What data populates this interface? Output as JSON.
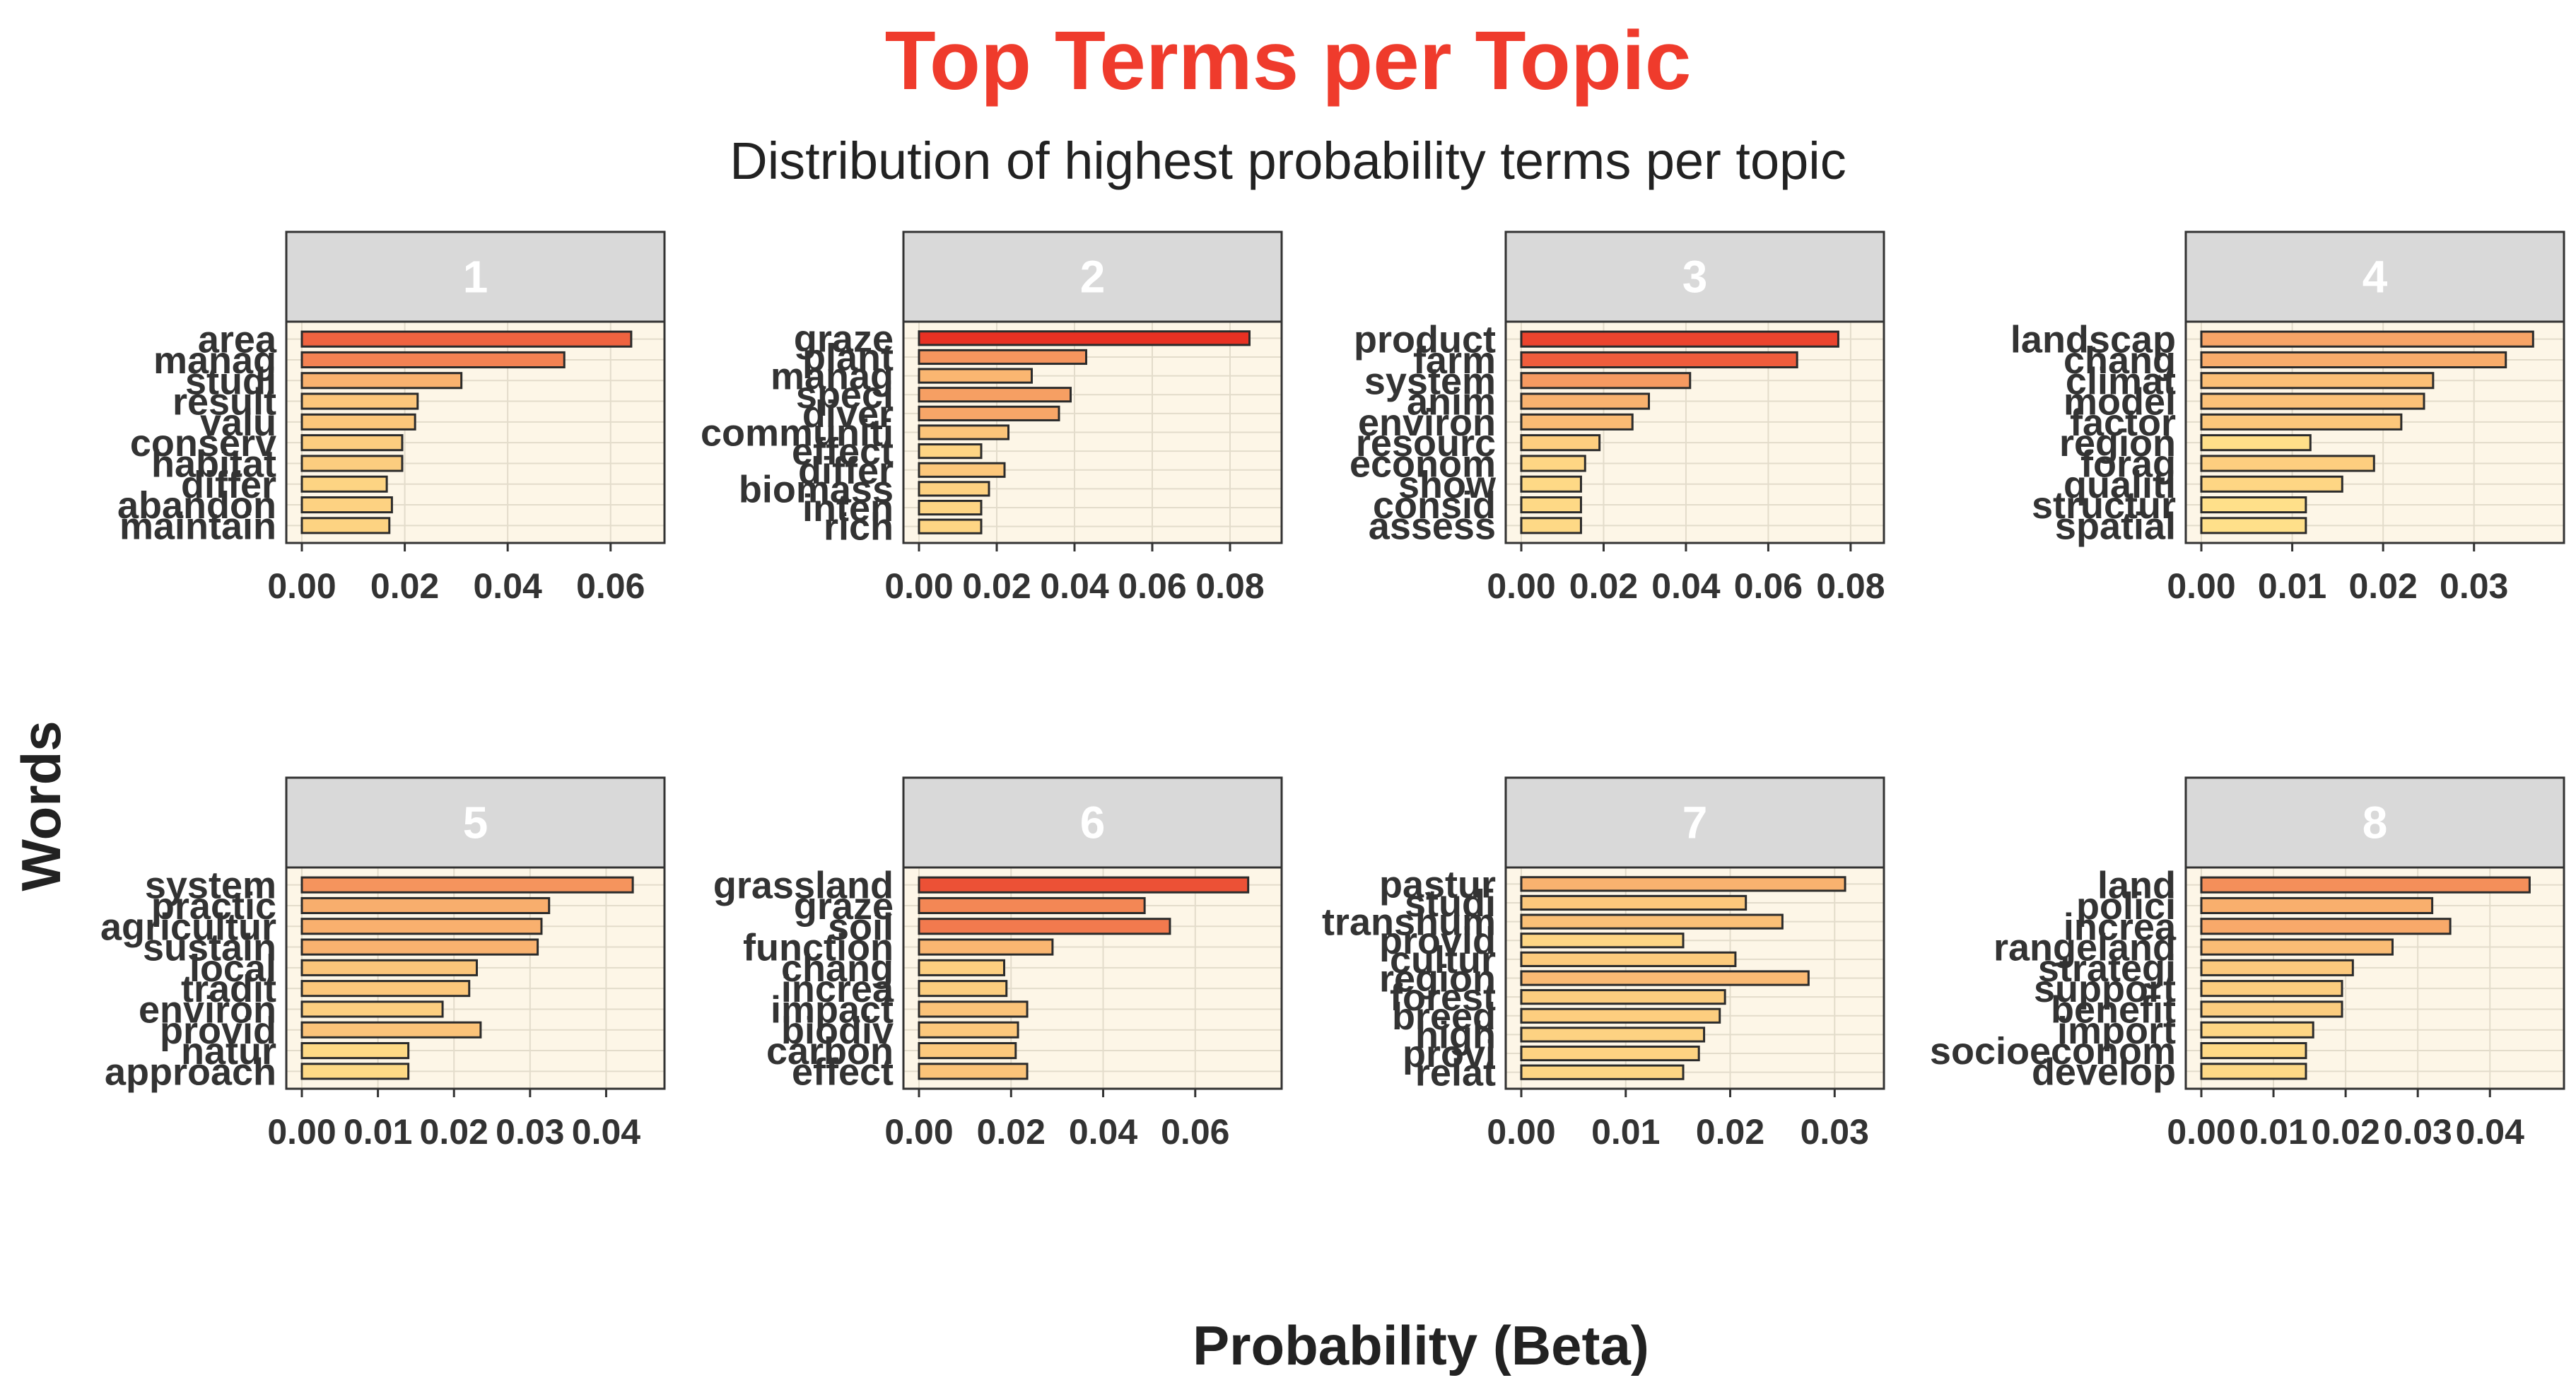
{
  "chart_data": {
    "type": "bar",
    "orientation": "horizontal",
    "title": "Top Terms per Topic",
    "subtitle": "Distribution of highest probability terms per topic",
    "xlabel": "Probability (Beta)",
    "ylabel": "Words",
    "colors": {
      "title": "#ef3b2c",
      "panel_bg": "#fdf6e7",
      "strip_bg": "#d9d9d9",
      "low": "#ffe08a",
      "high": "#e83123",
      "bar_border": "#2b2b2b"
    },
    "panels": [
      {
        "topic": "1",
        "xlim": [
          0,
          0.068
        ],
        "ticks": [
          0.0,
          0.02,
          0.04,
          0.06
        ],
        "tick_labels": [
          "0.00",
          "0.02",
          "0.04",
          "0.06"
        ],
        "terms": [
          "area",
          "manag",
          "studi",
          "result",
          "valu",
          "conserv",
          "habitat",
          "differ",
          "abandon",
          "maintain"
        ],
        "values": [
          0.064,
          0.051,
          0.031,
          0.0225,
          0.022,
          0.0195,
          0.0195,
          0.0165,
          0.0175,
          0.017
        ]
      },
      {
        "topic": "2",
        "xlim": [
          0,
          0.09
        ],
        "ticks": [
          0.0,
          0.02,
          0.04,
          0.06,
          0.08
        ],
        "tick_labels": [
          "0.00",
          "0.02",
          "0.04",
          "0.06",
          "0.08"
        ],
        "terms": [
          "graze",
          "plant",
          "manag",
          "speci",
          "diver",
          "communiti",
          "effect",
          "differ",
          "biomass",
          "inten",
          "rich"
        ],
        "values": [
          0.085,
          0.043,
          0.029,
          0.039,
          0.036,
          0.023,
          0.016,
          0.022,
          0.018,
          0.016,
          0.016
        ]
      },
      {
        "topic": "3",
        "xlim": [
          0,
          0.085
        ],
        "ticks": [
          0.0,
          0.02,
          0.04,
          0.06,
          0.08
        ],
        "tick_labels": [
          "0.00",
          "0.02",
          "0.04",
          "0.06",
          "0.08"
        ],
        "terms": [
          "product",
          "farm",
          "system",
          "anim",
          "environ",
          "resourc",
          "econom",
          "show",
          "consid",
          "assess"
        ],
        "values": [
          0.077,
          0.067,
          0.041,
          0.031,
          0.027,
          0.019,
          0.0155,
          0.0145,
          0.0145,
          0.0145
        ]
      },
      {
        "topic": "4",
        "xlim": [
          0,
          0.0385
        ],
        "ticks": [
          0.0,
          0.01,
          0.02,
          0.03
        ],
        "tick_labels": [
          "0.00",
          "0.01",
          "0.02",
          "0.03"
        ],
        "terms": [
          "landscap",
          "chang",
          "climat",
          "model",
          "factor",
          "region",
          "forag",
          "qualiti",
          "structur",
          "spatial"
        ],
        "values": [
          0.0365,
          0.0335,
          0.0255,
          0.0245,
          0.022,
          0.012,
          0.019,
          0.0155,
          0.0115,
          0.0115
        ]
      },
      {
        "topic": "5",
        "xlim": [
          0,
          0.046
        ],
        "ticks": [
          0.0,
          0.01,
          0.02,
          0.03,
          0.04
        ],
        "tick_labels": [
          "0.00",
          "0.01",
          "0.02",
          "0.03",
          "0.04"
        ],
        "terms": [
          "system",
          "practic",
          "agricultur",
          "sustain",
          "local",
          "tradit",
          "environ",
          "provid",
          "natur",
          "approach"
        ],
        "values": [
          0.0435,
          0.0325,
          0.0315,
          0.031,
          0.023,
          0.022,
          0.0185,
          0.0235,
          0.014,
          0.014
        ]
      },
      {
        "topic": "6",
        "xlim": [
          0,
          0.076
        ],
        "ticks": [
          0.0,
          0.02,
          0.04,
          0.06
        ],
        "tick_labels": [
          "0.00",
          "0.02",
          "0.04",
          "0.06"
        ],
        "terms": [
          "grassland",
          "graze",
          "soil",
          "function",
          "chang",
          "increa",
          "impact",
          "biodiv",
          "carbon",
          "effect"
        ],
        "values": [
          0.0715,
          0.049,
          0.0545,
          0.029,
          0.0185,
          0.019,
          0.0235,
          0.0215,
          0.021,
          0.0235
        ]
      },
      {
        "topic": "7",
        "xlim": [
          0,
          0.0335
        ],
        "ticks": [
          0.0,
          0.01,
          0.02,
          0.03
        ],
        "tick_labels": [
          "0.00",
          "0.01",
          "0.02",
          "0.03"
        ],
        "terms": [
          "pastur",
          "studi",
          "transhum",
          "provid",
          "cultur",
          "region",
          "forest",
          "breed",
          "high",
          "provi",
          "relat"
        ],
        "values": [
          0.031,
          0.0215,
          0.025,
          0.0155,
          0.0205,
          0.0275,
          0.0195,
          0.019,
          0.0175,
          0.017,
          0.0155
        ]
      },
      {
        "topic": "8",
        "xlim": [
          0,
          0.0485
        ],
        "ticks": [
          0.0,
          0.01,
          0.02,
          0.03,
          0.04
        ],
        "tick_labels": [
          "0.00",
          "0.01",
          "0.02",
          "0.03",
          "0.04"
        ],
        "terms": [
          "land",
          "polici",
          "increa",
          "rangeland",
          "strategi",
          "support",
          "benefit",
          "import",
          "socioeconom",
          "develop"
        ],
        "values": [
          0.0455,
          0.032,
          0.0345,
          0.0265,
          0.021,
          0.0195,
          0.0195,
          0.0155,
          0.0145,
          0.0145
        ]
      }
    ]
  }
}
